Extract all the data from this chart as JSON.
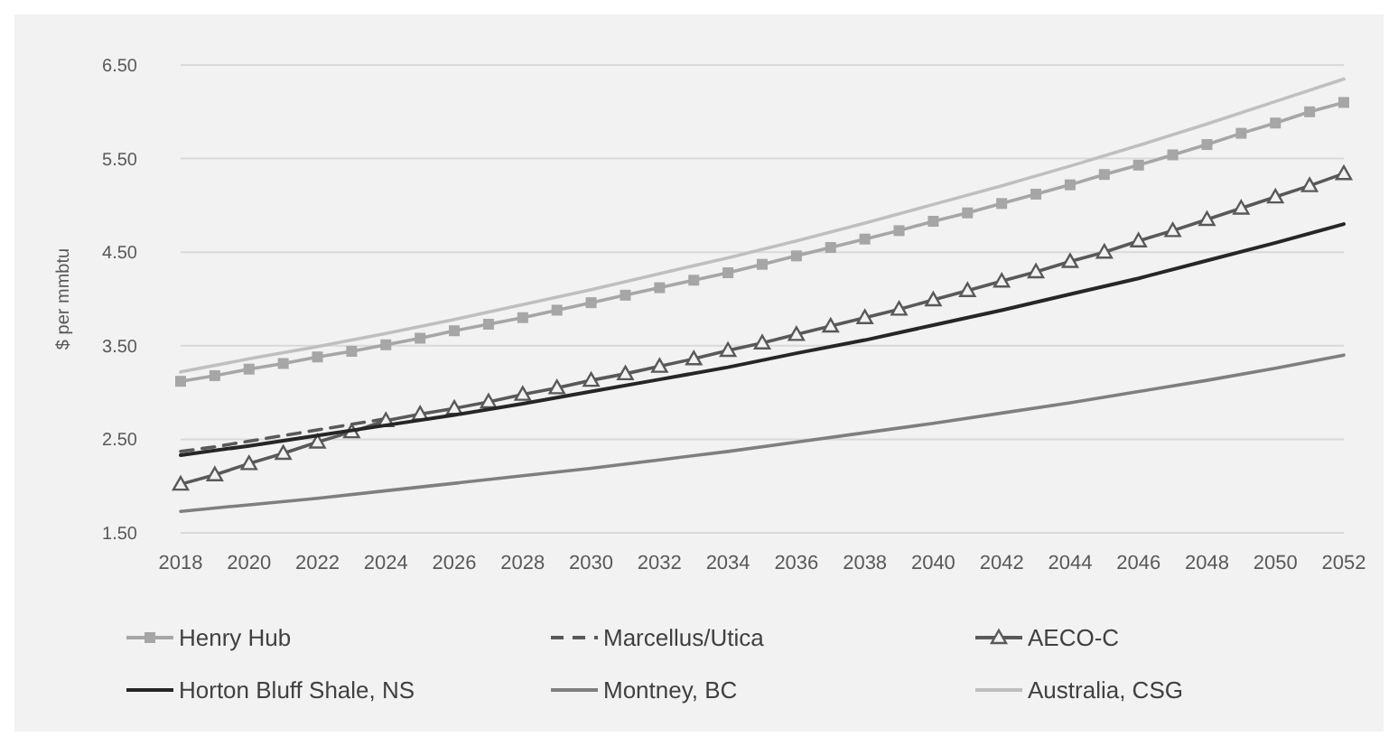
{
  "chart_data": {
    "type": "line",
    "ylabel": "$ per mmbtu",
    "x": [
      2018,
      2019,
      2020,
      2021,
      2022,
      2023,
      2024,
      2025,
      2026,
      2027,
      2028,
      2029,
      2030,
      2031,
      2032,
      2033,
      2034,
      2035,
      2036,
      2037,
      2038,
      2039,
      2040,
      2041,
      2042,
      2043,
      2044,
      2045,
      2046,
      2047,
      2048,
      2049,
      2050,
      2051,
      2052
    ],
    "xlim": [
      2018,
      2052
    ],
    "xticks": [
      2018,
      2020,
      2022,
      2024,
      2026,
      2028,
      2030,
      2032,
      2034,
      2036,
      2038,
      2040,
      2042,
      2044,
      2046,
      2048,
      2050,
      2052
    ],
    "ylim": [
      1.5,
      6.5
    ],
    "yticks": [
      {
        "value": 1.5,
        "label": "1.50"
      },
      {
        "value": 2.5,
        "label": "2.50"
      },
      {
        "value": 3.5,
        "label": "3.50"
      },
      {
        "value": 4.5,
        "label": "4.50"
      },
      {
        "value": 5.5,
        "label": "5.50"
      },
      {
        "value": 6.5,
        "label": "6.50"
      }
    ],
    "grid": "y",
    "legend": "bottom",
    "series": [
      {
        "name": "Henry Hub",
        "color": "#a6a6a6",
        "marker": "square",
        "line_style": "solid",
        "values": [
          3.12,
          3.18,
          3.25,
          3.31,
          3.38,
          3.44,
          3.51,
          3.58,
          3.66,
          3.73,
          3.8,
          3.88,
          3.96,
          4.04,
          4.12,
          4.2,
          4.28,
          4.37,
          4.46,
          4.55,
          4.64,
          4.73,
          4.83,
          4.92,
          5.02,
          5.12,
          5.22,
          5.33,
          5.43,
          5.54,
          5.65,
          5.77,
          5.88,
          6.0,
          6.1
        ]
      },
      {
        "name": "Marcellus/Utica",
        "color": "#595959",
        "marker": "none",
        "line_style": "dashed",
        "x": [
          2018,
          2019,
          2020,
          2021,
          2022,
          2023,
          2024
        ],
        "values": [
          2.37,
          2.42,
          2.48,
          2.54,
          2.6,
          2.66,
          2.72
        ]
      },
      {
        "name": "AECO-C",
        "color": "#595959",
        "marker": "triangle",
        "line_style": "solid",
        "values": [
          2.02,
          2.12,
          2.24,
          2.35,
          2.47,
          2.58,
          2.7,
          2.77,
          2.83,
          2.9,
          2.98,
          3.05,
          3.13,
          3.2,
          3.28,
          3.36,
          3.45,
          3.53,
          3.62,
          3.71,
          3.8,
          3.89,
          3.99,
          4.09,
          4.19,
          4.29,
          4.4,
          4.5,
          4.62,
          4.73,
          4.85,
          4.97,
          5.09,
          5.21,
          5.34
        ]
      },
      {
        "name": "Horton Bluff Shale, NS",
        "color": "#262626",
        "marker": "none",
        "line_style": "solid",
        "x": [
          2018,
          2020,
          2022,
          2024,
          2026,
          2028,
          2030,
          2032,
          2034,
          2036,
          2038,
          2040,
          2042,
          2044,
          2046,
          2048,
          2050,
          2052
        ],
        "values": [
          2.33,
          2.43,
          2.54,
          2.65,
          2.76,
          2.88,
          3.01,
          3.14,
          3.27,
          3.42,
          3.56,
          3.72,
          3.88,
          4.05,
          4.22,
          4.41,
          4.6,
          4.8
        ]
      },
      {
        "name": "Montney, BC",
        "color": "#7f7f7f",
        "marker": "none",
        "line_style": "solid",
        "x": [
          2018,
          2020,
          2022,
          2024,
          2026,
          2028,
          2030,
          2032,
          2034,
          2036,
          2038,
          2040,
          2042,
          2044,
          2046,
          2048,
          2050,
          2052
        ],
        "values": [
          1.73,
          1.8,
          1.87,
          1.95,
          2.03,
          2.11,
          2.19,
          2.28,
          2.37,
          2.47,
          2.57,
          2.67,
          2.78,
          2.89,
          3.01,
          3.13,
          3.26,
          3.4
        ]
      },
      {
        "name": "Australia, CSG",
        "color": "#bfbfbf",
        "marker": "none",
        "line_style": "solid",
        "x": [
          2018,
          2020,
          2022,
          2024,
          2026,
          2028,
          2030,
          2032,
          2034,
          2036,
          2038,
          2040,
          2042,
          2044,
          2046,
          2048,
          2050,
          2052
        ],
        "values": [
          3.22,
          3.36,
          3.49,
          3.63,
          3.78,
          3.94,
          4.1,
          4.27,
          4.44,
          4.62,
          4.81,
          5.01,
          5.21,
          5.42,
          5.64,
          5.87,
          6.11,
          6.35
        ]
      }
    ]
  }
}
